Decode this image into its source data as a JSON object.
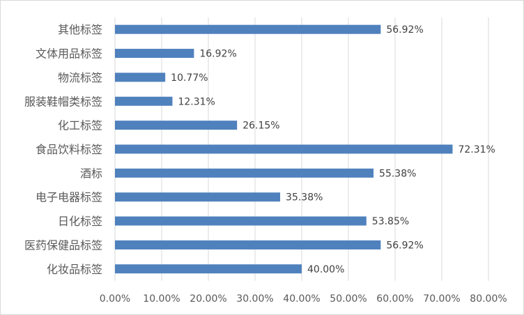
{
  "chart_data": {
    "type": "bar",
    "orientation": "horizontal",
    "title": "",
    "xlabel": "",
    "ylabel": "",
    "categories": [
      "其他标签",
      "文体用品标签",
      "物流标签",
      "服装鞋帽类标签",
      "化工标签",
      "食品饮料标签",
      "酒标",
      "电子电器标签",
      "日化标签",
      "医药保健品标签",
      "化妆品标签"
    ],
    "values": [
      56.92,
      16.92,
      10.77,
      12.31,
      26.15,
      72.31,
      55.38,
      35.38,
      53.85,
      56.92,
      40.0
    ],
    "data_labels": [
      "56.92%",
      "16.92%",
      "10.77%",
      "12.31%",
      "26.15%",
      "72.31%",
      "55.38%",
      "35.38%",
      "53.85%",
      "56.92%",
      "40.00%"
    ],
    "xlim": [
      0,
      80
    ],
    "xticks": [
      0,
      10,
      20,
      30,
      40,
      50,
      60,
      70,
      80
    ],
    "xtick_labels": [
      "0.00%",
      "10.00%",
      "20.00%",
      "30.00%",
      "40.00%",
      "50.00%",
      "60.00%",
      "70.00%",
      "80.00%"
    ],
    "grid": "vertical",
    "legend": "none",
    "bar_color": "#4f81bd",
    "grid_color": "#d9d9d9"
  }
}
